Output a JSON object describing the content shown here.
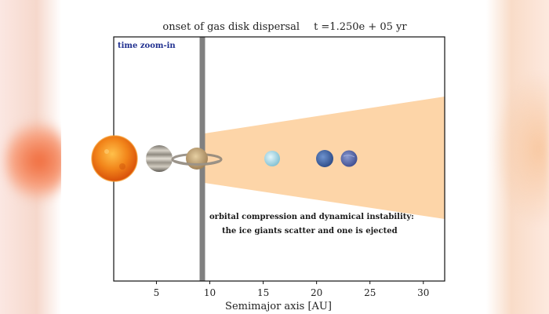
{
  "header": {
    "title": "onset of gas disk dispersal",
    "time_text": "t =1.250e + 05 yr"
  },
  "panel": {
    "zoom_label": "time zoom-in",
    "annotation_line1": "orbital compression and dynamical instability:",
    "annotation_line2": "the ice giants scatter and one is ejected"
  },
  "axis": {
    "xlabel": "Semimajor axis [AU]",
    "xmin": 1.0,
    "xmax": 32.0,
    "ticks": [
      5,
      10,
      15,
      20,
      25,
      30
    ],
    "tick_labels": [
      "5",
      "10",
      "15",
      "20",
      "25",
      "30"
    ],
    "marker_line_au": 9.3
  },
  "disk": {
    "inner_edge_au": 9.5,
    "outer_edge_au": 32.0,
    "color": "#fdd5a8"
  },
  "bodies": [
    {
      "name": "sun-icon",
      "au": 1.0,
      "color": "#ef7a12"
    },
    {
      "name": "jupiter-icon",
      "au": 5.2,
      "color": "#b9b2a6"
    },
    {
      "name": "saturn-icon",
      "au": 9.5,
      "color": "#c8a878"
    },
    {
      "name": "uranus-icon",
      "au": 16.0,
      "color": "#a9d9e6"
    },
    {
      "name": "neptune-icon",
      "au": 21.0,
      "color": "#3f66a8"
    },
    {
      "name": "ice-giant-icon",
      "au": 22.9,
      "color": "#5d6fb0"
    }
  ]
}
